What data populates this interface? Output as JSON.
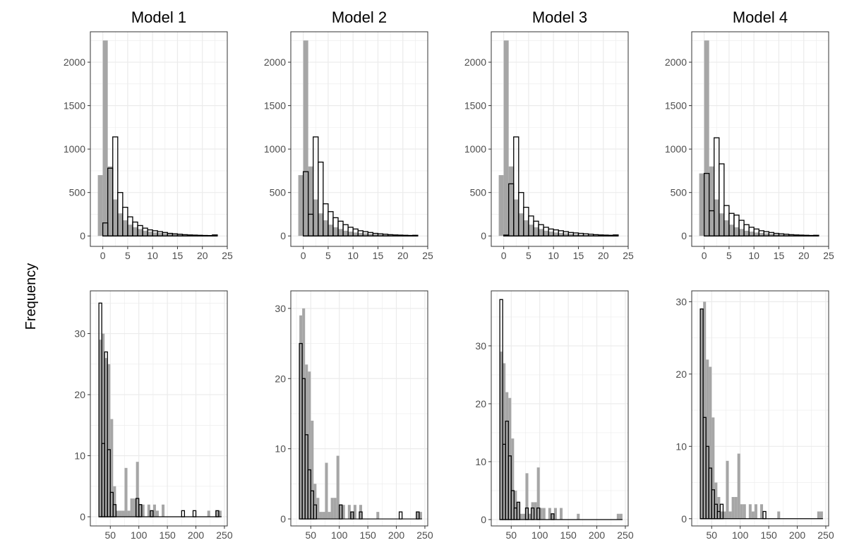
{
  "figure": {
    "ylabel": "Frequency",
    "colors": {
      "observed_fill": "#a6a6a6",
      "predicted_stroke": "#000000",
      "grid": "#ebebeb",
      "frame": "#333333"
    }
  },
  "chart_data": [
    {
      "type": "histogram",
      "title": "Model 1",
      "row": "top",
      "col": 0,
      "xlim": [
        -2.5,
        25
      ],
      "ylim": [
        -120,
        2350
      ],
      "xticks": [
        0,
        5,
        10,
        15,
        20,
        25
      ],
      "yticks": [
        0,
        500,
        1000,
        1500,
        2000
      ],
      "grid": true,
      "binwidth": 1,
      "bin_start": -1,
      "observed": [
        700,
        2250,
        800,
        420,
        260,
        180,
        130,
        100,
        80,
        60,
        50,
        40,
        35,
        30,
        25,
        20,
        15,
        12,
        10,
        8,
        6,
        5,
        4,
        3
      ],
      "predicted": [
        0,
        150,
        780,
        1140,
        500,
        330,
        220,
        160,
        120,
        90,
        70,
        60,
        50,
        40,
        30,
        25,
        20,
        15,
        12,
        10,
        8,
        6,
        5,
        12
      ]
    },
    {
      "type": "histogram",
      "title": "Model 2",
      "row": "top",
      "col": 1,
      "xlim": [
        -2.5,
        25
      ],
      "ylim": [
        -120,
        2350
      ],
      "xticks": [
        0,
        5,
        10,
        15,
        20,
        25
      ],
      "yticks": [
        0,
        500,
        1000,
        1500,
        2000
      ],
      "grid": true,
      "binwidth": 1,
      "bin_start": -1,
      "observed": [
        700,
        2250,
        800,
        420,
        260,
        180,
        130,
        100,
        80,
        60,
        50,
        40,
        35,
        30,
        25,
        20,
        15,
        12,
        10,
        8,
        6,
        5,
        4,
        3
      ],
      "predicted": [
        0,
        740,
        250,
        1140,
        850,
        370,
        280,
        210,
        170,
        130,
        100,
        80,
        60,
        50,
        40,
        30,
        25,
        20,
        15,
        12,
        10,
        8,
        6,
        8
      ]
    },
    {
      "type": "histogram",
      "title": "Model 3",
      "row": "top",
      "col": 2,
      "xlim": [
        -2.5,
        25
      ],
      "ylim": [
        -120,
        2350
      ],
      "xticks": [
        0,
        5,
        10,
        15,
        20,
        25
      ],
      "yticks": [
        0,
        500,
        1000,
        1500,
        2000
      ],
      "grid": true,
      "binwidth": 1,
      "bin_start": -1,
      "observed": [
        700,
        2250,
        800,
        420,
        260,
        180,
        130,
        100,
        80,
        60,
        50,
        40,
        35,
        30,
        25,
        20,
        15,
        12,
        10,
        8,
        6,
        5,
        4,
        3
      ],
      "predicted": [
        0,
        10,
        600,
        1140,
        500,
        330,
        230,
        170,
        130,
        100,
        80,
        70,
        60,
        50,
        40,
        35,
        30,
        25,
        20,
        15,
        12,
        10,
        8,
        12
      ]
    },
    {
      "type": "histogram",
      "title": "Model 4",
      "row": "top",
      "col": 3,
      "xlim": [
        -2.5,
        25
      ],
      "ylim": [
        -120,
        2350
      ],
      "xticks": [
        0,
        5,
        10,
        15,
        20,
        25
      ],
      "yticks": [
        0,
        500,
        1000,
        1500,
        2000
      ],
      "grid": true,
      "binwidth": 1,
      "bin_start": -1,
      "observed": [
        720,
        2250,
        800,
        420,
        260,
        180,
        130,
        100,
        80,
        60,
        50,
        40,
        35,
        30,
        25,
        20,
        15,
        12,
        10,
        8,
        6,
        5,
        4,
        3
      ],
      "predicted": [
        0,
        720,
        290,
        1130,
        830,
        350,
        260,
        240,
        180,
        130,
        100,
        80,
        60,
        50,
        40,
        30,
        25,
        20,
        15,
        12,
        10,
        8,
        6,
        8
      ]
    },
    {
      "type": "histogram",
      "title": "",
      "row": "bottom",
      "col": 0,
      "xlim": [
        15,
        255
      ],
      "ylim": [
        -1.5,
        37
      ],
      "xticks": [
        50,
        100,
        150,
        200,
        250
      ],
      "yticks": [
        0,
        10,
        20,
        30
      ],
      "grid": true,
      "binwidth": 5,
      "bin_start": 25,
      "observed": [
        0,
        29,
        30,
        26,
        25,
        16,
        5,
        1,
        1,
        1,
        8,
        1,
        3,
        3,
        9,
        2,
        2,
        0,
        2,
        1,
        2,
        1,
        0,
        2,
        0,
        0,
        0,
        0,
        0,
        0,
        0,
        0,
        0,
        0,
        0,
        0,
        0,
        0,
        0,
        1,
        0,
        0,
        1,
        1
      ],
      "predicted": [
        0,
        35,
        12,
        27,
        11,
        4,
        2,
        0,
        0,
        0,
        0,
        0,
        0,
        0,
        3,
        2,
        0,
        0,
        0,
        1,
        0,
        0,
        0,
        0,
        0,
        0,
        0,
        0,
        0,
        0,
        1,
        0,
        0,
        0,
        1,
        0,
        0,
        0,
        0,
        0,
        0,
        0,
        1,
        0
      ]
    },
    {
      "type": "histogram",
      "title": "",
      "row": "bottom",
      "col": 1,
      "xlim": [
        15,
        255
      ],
      "ylim": [
        -1,
        32.5
      ],
      "xticks": [
        50,
        100,
        150,
        200,
        250
      ],
      "yticks": [
        0,
        10,
        20,
        30
      ],
      "grid": true,
      "binwidth": 5,
      "bin_start": 25,
      "observed": [
        0,
        29,
        30,
        22,
        21,
        14,
        5,
        3,
        1,
        1,
        8,
        1,
        3,
        3,
        9,
        2,
        2,
        0,
        2,
        1,
        2,
        0,
        2,
        0,
        0,
        0,
        0,
        0,
        1,
        0,
        0,
        0,
        0,
        0,
        0,
        0,
        0,
        0,
        0,
        0,
        0,
        0,
        1,
        1
      ],
      "predicted": [
        0,
        25,
        20,
        12,
        7,
        4,
        2,
        0,
        0,
        0,
        0,
        0,
        0,
        0,
        0,
        2,
        0,
        0,
        0,
        1,
        0,
        0,
        1,
        0,
        0,
        0,
        0,
        0,
        0,
        0,
        0,
        0,
        0,
        0,
        0,
        0,
        1,
        0,
        0,
        0,
        0,
        0,
        1,
        0
      ]
    },
    {
      "type": "histogram",
      "title": "",
      "row": "bottom",
      "col": 2,
      "xlim": [
        15,
        255
      ],
      "ylim": [
        -1.1,
        39.5
      ],
      "xticks": [
        50,
        100,
        150,
        200,
        250
      ],
      "yticks": [
        0,
        10,
        20,
        30
      ],
      "grid": true,
      "binwidth": 5,
      "bin_start": 25,
      "observed": [
        0,
        29,
        27,
        22,
        21,
        14,
        5,
        3,
        1,
        1,
        8,
        1,
        3,
        3,
        9,
        2,
        2,
        0,
        2,
        1,
        2,
        0,
        2,
        0,
        0,
        0,
        0,
        0,
        1,
        0,
        0,
        0,
        0,
        0,
        0,
        0,
        0,
        0,
        0,
        0,
        0,
        0,
        1,
        1
      ],
      "predicted": [
        0,
        38,
        13,
        17,
        11,
        5,
        2,
        3,
        0,
        0,
        2,
        0,
        2,
        0,
        2,
        0,
        0,
        0,
        0,
        1,
        0,
        0,
        0,
        0,
        0,
        0,
        0,
        0,
        0,
        0,
        0,
        0,
        0,
        0,
        0,
        0,
        0,
        0,
        0,
        0,
        0,
        0,
        0,
        0
      ]
    },
    {
      "type": "histogram",
      "title": "",
      "row": "bottom",
      "col": 3,
      "xlim": [
        15,
        255
      ],
      "ylim": [
        -1,
        31.5
      ],
      "xticks": [
        50,
        100,
        150,
        200,
        250
      ],
      "yticks": [
        0,
        10,
        20,
        30
      ],
      "grid": true,
      "binwidth": 5,
      "bin_start": 25,
      "observed": [
        0,
        29,
        30,
        22,
        21,
        14,
        5,
        3,
        1,
        1,
        8,
        1,
        3,
        3,
        9,
        2,
        2,
        0,
        2,
        1,
        2,
        0,
        2,
        0,
        0,
        0,
        0,
        0,
        1,
        0,
        0,
        0,
        0,
        0,
        0,
        0,
        0,
        0,
        0,
        0,
        0,
        0,
        1,
        1
      ],
      "predicted": [
        0,
        29,
        14,
        10,
        7,
        4,
        2,
        1,
        2,
        0,
        0,
        0,
        0,
        0,
        0,
        0,
        0,
        0,
        0,
        0,
        0,
        0,
        0,
        1,
        0,
        0,
        0,
        0,
        0,
        0,
        0,
        0,
        0,
        0,
        0,
        0,
        0,
        0,
        0,
        0,
        0,
        0,
        0,
        0
      ]
    }
  ]
}
